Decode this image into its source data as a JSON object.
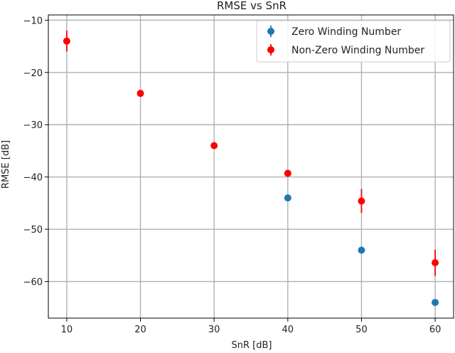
{
  "chart_data": {
    "type": "scatter",
    "title": "RMSE vs SnR",
    "xlabel": "SnR [dB]",
    "ylabel": "RMSE [dB]",
    "xlim": [
      7.5,
      62.5
    ],
    "ylim": [
      -67,
      -9
    ],
    "xticks": [
      10,
      20,
      30,
      40,
      50,
      60
    ],
    "yticks": [
      -60,
      -50,
      -40,
      -30,
      -20,
      -10
    ],
    "grid": true,
    "legend_position": "top-right",
    "series": [
      {
        "name": "Zero Winding Number",
        "color": "#1f77b4",
        "x": [
          40,
          50,
          60
        ],
        "y": [
          -44,
          -54,
          -64
        ],
        "err": [
          0.3,
          0.3,
          0.3
        ]
      },
      {
        "name": "Non-Zero Winding Number",
        "color": "#ff0000",
        "x": [
          10,
          20,
          30,
          40,
          50,
          60
        ],
        "y": [
          -14,
          -24,
          -34,
          -39.3,
          -44.6,
          -56.4
        ],
        "err": [
          2,
          0.4,
          0.4,
          0.4,
          2.3,
          2.5
        ]
      }
    ]
  }
}
